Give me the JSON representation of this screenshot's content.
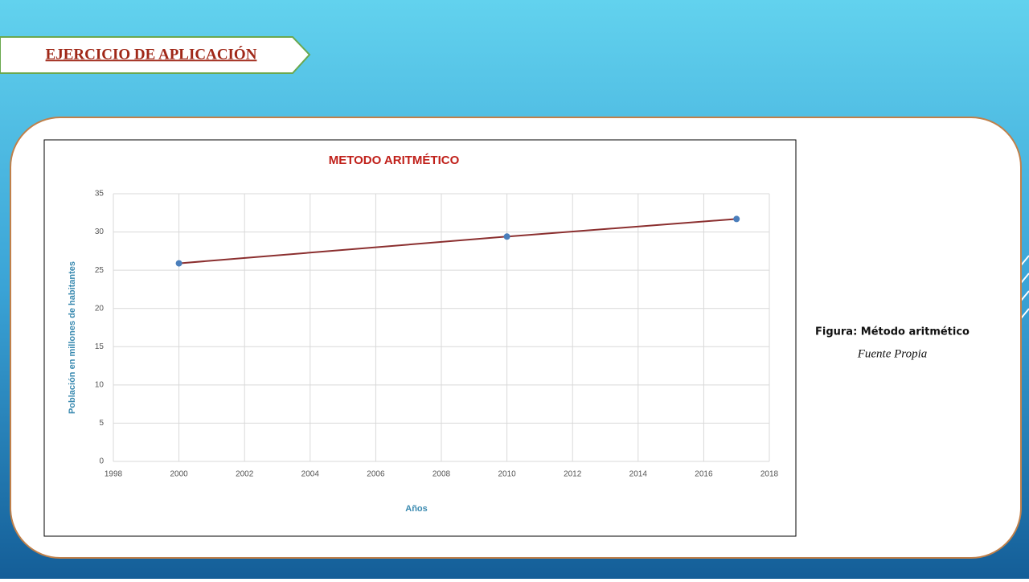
{
  "slide": {
    "heading": "EJERCICIO DE APLICACIÓN",
    "caption": "Figura: Método aritmético",
    "source": "Fuente Propia"
  },
  "chart_data": {
    "type": "line",
    "title": "METODO ARITMÉTICO",
    "x_label": "Años",
    "y_label": "Población en millones de habitantes",
    "x": [
      2000,
      2010,
      2017
    ],
    "values": [
      25.9,
      29.4,
      31.7
    ],
    "color": "#8b2f2f",
    "marker_color": "#4a7ebb",
    "xlim": [
      1998,
      2018
    ],
    "xticks": [
      1998,
      2000,
      2002,
      2004,
      2006,
      2008,
      2010,
      2012,
      2014,
      2016,
      2018
    ],
    "ylim": [
      0,
      35
    ],
    "yticks": [
      0,
      5,
      10,
      15,
      20,
      25,
      30,
      35
    ],
    "grid": true
  }
}
